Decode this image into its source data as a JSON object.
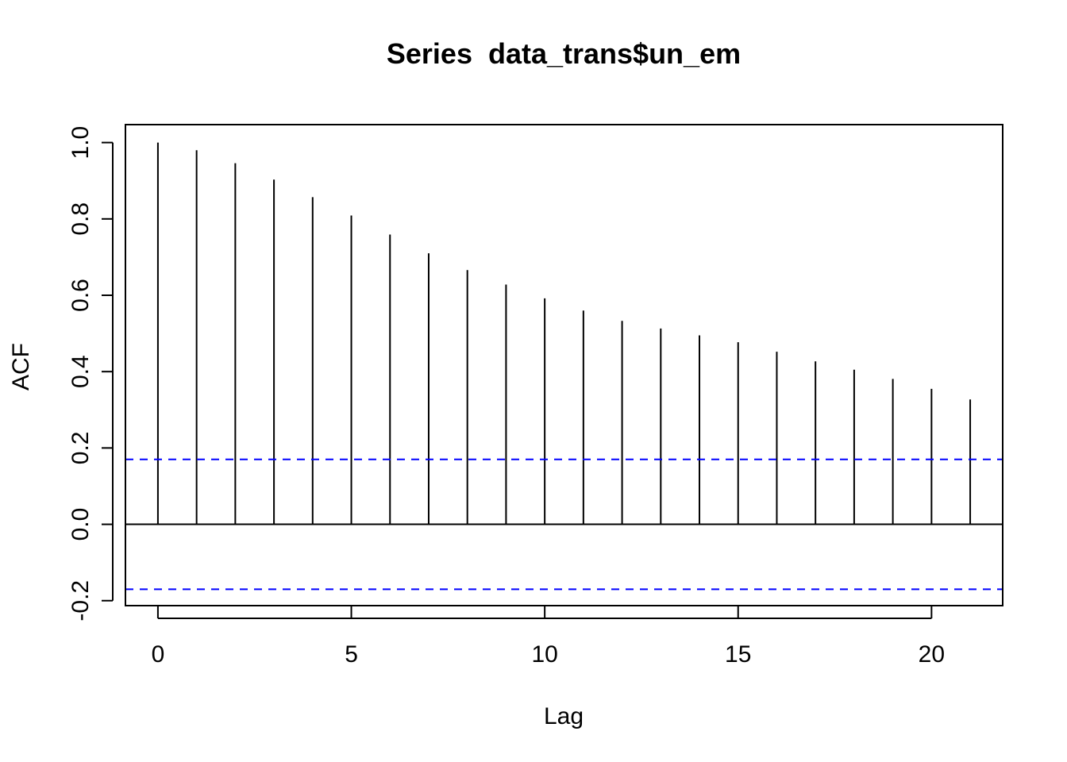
{
  "chart_data": {
    "type": "bar",
    "title": "Series  data_trans$un_em",
    "xlabel": "Lag",
    "ylabel": "ACF",
    "xlim": [
      -0.84,
      21.84
    ],
    "ylim": [
      -0.213,
      1.047
    ],
    "x_ticks": [
      0,
      5,
      10,
      15,
      20
    ],
    "y_ticks": [
      -0.2,
      0.0,
      0.2,
      0.4,
      0.6,
      0.8,
      1.0
    ],
    "x_tick_labels": [
      "0",
      "5",
      "10",
      "15",
      "20"
    ],
    "y_tick_labels": [
      "-0.2",
      "0.0",
      "0.2",
      "0.4",
      "0.6",
      "0.8",
      "1.0"
    ],
    "lags": [
      0,
      1,
      2,
      3,
      4,
      5,
      6,
      7,
      8,
      9,
      10,
      11,
      12,
      13,
      14,
      15,
      16,
      17,
      18,
      19,
      20,
      21
    ],
    "acf": [
      1.0,
      0.98,
      0.946,
      0.903,
      0.857,
      0.809,
      0.759,
      0.71,
      0.666,
      0.628,
      0.592,
      0.56,
      0.533,
      0.513,
      0.495,
      0.477,
      0.452,
      0.427,
      0.405,
      0.381,
      0.355,
      0.327
    ],
    "confidence_bound": 0.17,
    "zero_line": 0,
    "grid": false,
    "colors": {
      "bars": "#000000",
      "confidence": "#0000ff",
      "axes": "#000000"
    }
  }
}
